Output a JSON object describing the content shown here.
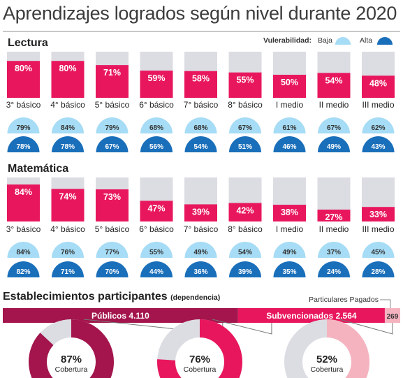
{
  "title": "Aprendizajes logrados según nivel durante 2020",
  "legend": {
    "label": "Vulerabilidad:",
    "low": "Baja",
    "high": "Alta",
    "low_color": "#a6dcf5",
    "high_color": "#1a6fba"
  },
  "colors": {
    "bar": "#e8175d",
    "bar_bg": "#dcdce3",
    "publicos": "#a3154c",
    "subvencionados": "#e8175d",
    "pagados": "#f5b3c0",
    "ring_bg": "#dcdce3"
  },
  "chart_data": [
    {
      "type": "bar",
      "title": "Lectura",
      "categories": [
        "3° básico",
        "4° básico",
        "5° básico",
        "6° básico",
        "7° básico",
        "8° básico",
        "I medio",
        "II medio",
        "III medio"
      ],
      "values": [
        80,
        80,
        71,
        59,
        58,
        55,
        50,
        54,
        48
      ],
      "labels": [
        "80%",
        "80%",
        "71%",
        "59%",
        "58%",
        "55%",
        "50%",
        "54%",
        "48%"
      ],
      "ylim": [
        0,
        100
      ],
      "series": [
        {
          "name": "Baja",
          "values": [
            79,
            84,
            79,
            68,
            68,
            67,
            61,
            67,
            62
          ]
        },
        {
          "name": "Alta",
          "values": [
            78,
            78,
            67,
            56,
            54,
            51,
            46,
            49,
            43
          ]
        }
      ]
    },
    {
      "type": "bar",
      "title": "Matemática",
      "categories": [
        "3° básico",
        "4° básico",
        "5° básico",
        "6° básico",
        "7° básico",
        "8° básico",
        "I medio",
        "II medio",
        "III medio"
      ],
      "values": [
        84,
        74,
        73,
        47,
        39,
        42,
        38,
        27,
        33
      ],
      "labels": [
        "84%",
        "74%",
        "73%",
        "47%",
        "39%",
        "42%",
        "38%",
        "27%",
        "33%"
      ],
      "ylim": [
        0,
        100
      ],
      "series": [
        {
          "name": "Baja",
          "values": [
            84,
            76,
            77,
            55,
            49,
            54,
            49,
            37,
            45
          ]
        },
        {
          "name": "Alta",
          "values": [
            82,
            71,
            70,
            44,
            36,
            39,
            35,
            24,
            28
          ]
        }
      ]
    },
    {
      "type": "bar",
      "title": "Establecimientos participantes",
      "subtitle": "(dependencia)",
      "categories": [
        "Públicos",
        "Subvencionados",
        "Particulares Pagados"
      ],
      "values": [
        4110,
        2564,
        269
      ],
      "value_labels": [
        "4.110",
        "2.564",
        "269"
      ]
    },
    {
      "type": "pie",
      "categories": [
        "Públicos",
        "Subvencionados",
        "Particulares Pagados"
      ],
      "values": [
        87,
        76,
        52
      ],
      "labels": [
        "87%",
        "76%",
        "52%"
      ],
      "caption": "Cobertura"
    }
  ]
}
